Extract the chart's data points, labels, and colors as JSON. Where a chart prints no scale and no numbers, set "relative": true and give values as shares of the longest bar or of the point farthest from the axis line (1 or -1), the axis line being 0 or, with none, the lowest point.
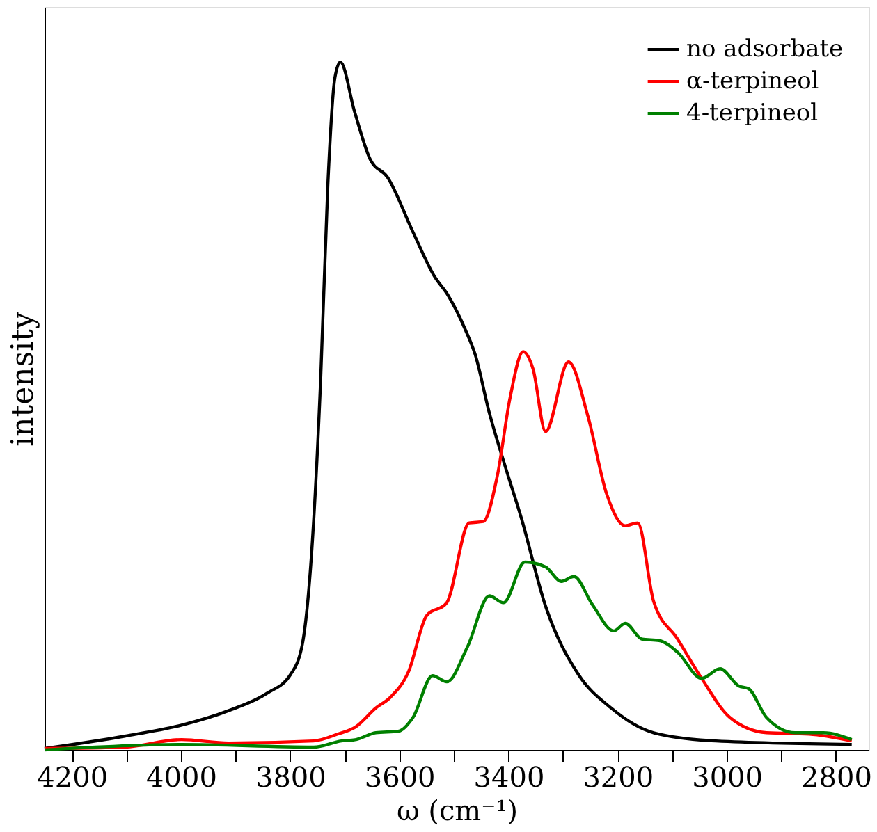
{
  "chart_data": {
    "type": "line",
    "relative": true,
    "xlabel": "ω (cm⁻¹)",
    "ylabel": "intensity",
    "xlim": [
      4250,
      2740
    ],
    "xticks": [
      4200,
      {
        "value": 4100,
        "label": null
      },
      4000,
      {
        "value": 3900,
        "label": null
      },
      3800,
      {
        "value": 3700,
        "label": null
      },
      3600,
      {
        "value": 3500,
        "label": null
      },
      3400,
      {
        "value": 3300,
        "label": null
      },
      3200,
      {
        "value": 3100,
        "label": null
      },
      3000,
      {
        "value": 2900,
        "label": null
      },
      2800
    ],
    "legend": "top right",
    "grid": false,
    "marker": "none",
    "line_style": "solid",
    "series": [
      {
        "name": "no adsorbate",
        "color": "#000000",
        "x": [
          4250,
          4103,
          3999,
          3913,
          3843,
          3799,
          3778,
          3760,
          3744,
          3731,
          3718,
          3708,
          3682,
          3653,
          3622,
          3575,
          3536,
          3510,
          3479,
          3461,
          3435,
          3409,
          3376,
          3332,
          3272,
          3212,
          3134,
          3020,
          2771
        ],
        "values": [
          0.002,
          0.02,
          0.036,
          0.057,
          0.082,
          0.11,
          0.152,
          0.294,
          0.54,
          0.82,
          0.977,
          1.0,
          0.928,
          0.858,
          0.833,
          0.753,
          0.689,
          0.66,
          0.611,
          0.575,
          0.49,
          0.42,
          0.336,
          0.209,
          0.11,
          0.061,
          0.025,
          0.013,
          0.008
        ]
      },
      {
        "name": "α-terpineol",
        "color": "#ff0000",
        "x": [
          4250,
          4103,
          3999,
          3913,
          3757,
          3713,
          3679,
          3643,
          3617,
          3583,
          3550,
          3513,
          3472,
          3446,
          3420,
          3397,
          3373,
          3355,
          3332,
          3290,
          3254,
          3220,
          3186,
          3163,
          3134,
          3090,
          3046,
          2994,
          2927,
          2849,
          2771
        ],
        "values": [
          0.002,
          0.004,
          0.015,
          0.01,
          0.013,
          0.023,
          0.034,
          0.061,
          0.076,
          0.114,
          0.195,
          0.214,
          0.33,
          0.332,
          0.4,
          0.512,
          0.579,
          0.554,
          0.463,
          0.564,
          0.484,
          0.372,
          0.326,
          0.33,
          0.216,
          0.161,
          0.104,
          0.047,
          0.025,
          0.023,
          0.013
        ]
      },
      {
        "name": "4-terpineol",
        "color": "#008000",
        "x": [
          4250,
          3999,
          3757,
          3706,
          3679,
          3643,
          3602,
          3575,
          3539,
          3513,
          3475,
          3435,
          3409,
          3370,
          3332,
          3303,
          3280,
          3246,
          3207,
          3186,
          3155,
          3124,
          3090,
          3046,
          3012,
          2978,
          2960,
          2927,
          2875,
          2823,
          2771
        ],
        "values": [
          0.0,
          0.008,
          0.004,
          0.013,
          0.015,
          0.025,
          0.027,
          0.047,
          0.108,
          0.099,
          0.15,
          0.224,
          0.214,
          0.273,
          0.266,
          0.245,
          0.252,
          0.211,
          0.173,
          0.184,
          0.161,
          0.159,
          0.142,
          0.104,
          0.118,
          0.093,
          0.089,
          0.047,
          0.025,
          0.025,
          0.015
        ]
      }
    ]
  }
}
